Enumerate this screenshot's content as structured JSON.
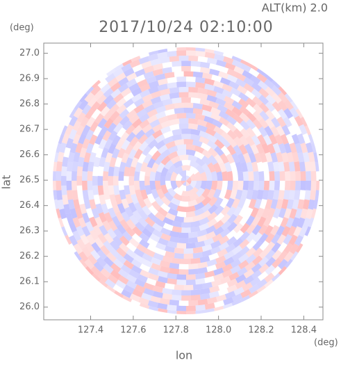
{
  "chart_data": {
    "type": "radar-ppi",
    "title": "2017/10/24 02:10:00",
    "annotation": "ALT(km) 2.0",
    "x_label": "lon",
    "y_label": "lat",
    "x_unit": "(deg)",
    "y_unit": "(deg)",
    "xlim": [
      127.18,
      128.49
    ],
    "ylim": [
      25.95,
      27.04
    ],
    "xticks": [
      {
        "value": 127.4,
        "label": "127.4"
      },
      {
        "value": 127.6,
        "label": "127.6"
      },
      {
        "value": 127.8,
        "label": "127.8"
      },
      {
        "value": 128.0,
        "label": "128.0"
      },
      {
        "value": 128.2,
        "label": "128.2"
      },
      {
        "value": 128.4,
        "label": "128.4"
      }
    ],
    "yticks": [
      {
        "value": 26.0,
        "label": "26.0"
      },
      {
        "value": 26.1,
        "label": "26.1"
      },
      {
        "value": 26.2,
        "label": "26.2"
      },
      {
        "value": 26.3,
        "label": "26.3"
      },
      {
        "value": 26.4,
        "label": "26.4"
      },
      {
        "value": 26.5,
        "label": "26.5"
      },
      {
        "value": 26.6,
        "label": "26.6"
      },
      {
        "value": 26.7,
        "label": "26.7"
      },
      {
        "value": 26.8,
        "label": "26.8"
      },
      {
        "value": 26.9,
        "label": "26.9"
      },
      {
        "value": 27.0,
        "label": "27.0"
      }
    ]
  }
}
